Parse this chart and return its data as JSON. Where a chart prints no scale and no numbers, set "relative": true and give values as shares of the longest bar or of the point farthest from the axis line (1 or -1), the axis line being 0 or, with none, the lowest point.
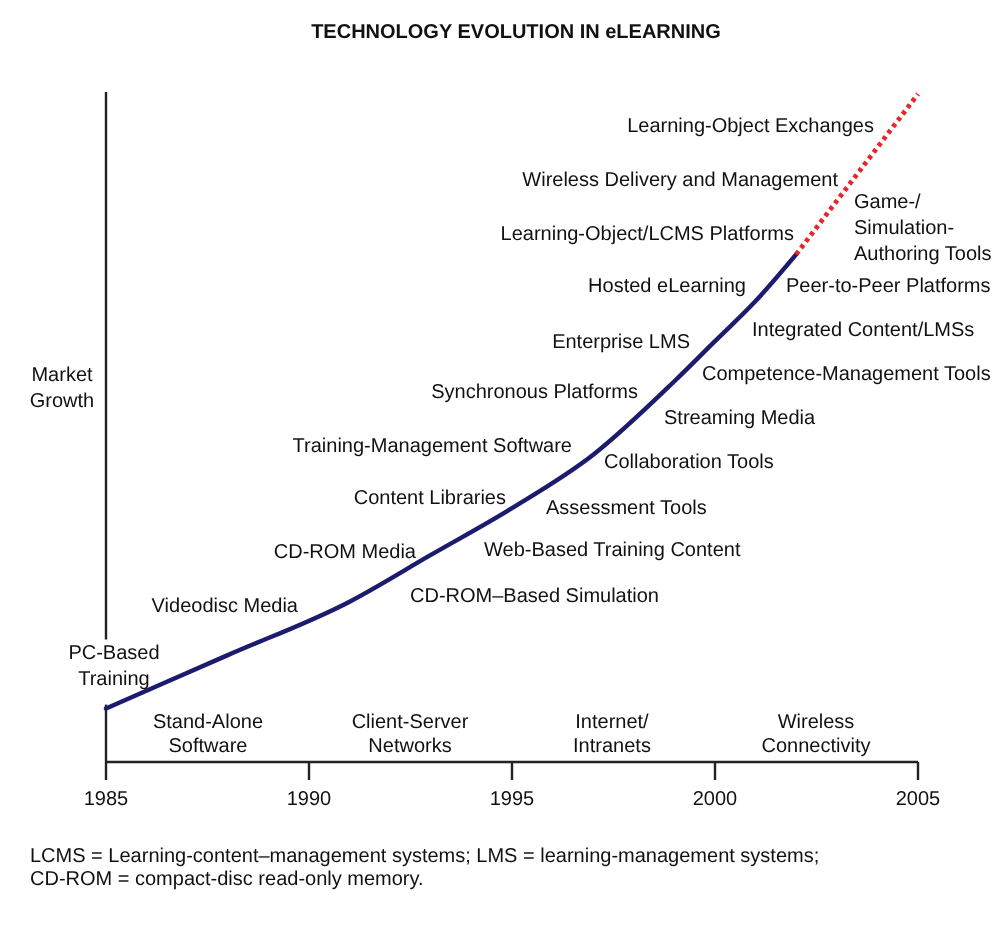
{
  "chart_data": {
    "type": "line",
    "title": "TECHNOLOGY EVOLUTION IN eLEARNING",
    "ylabel": "Market\nGrowth",
    "relative": true,
    "xlim": [
      1985,
      2005
    ],
    "xticks": [
      1985,
      1990,
      1995,
      2000,
      2005
    ],
    "series": [
      {
        "color": "#1c1c6e",
        "line_style": "solid",
        "x": [
          1985,
          1988,
          1991,
          1993,
          1995,
          1997,
          1999,
          2000,
          2001,
          2002
        ],
        "values": [
          0.08,
          0.16,
          0.24,
          0.31,
          0.38,
          0.46,
          0.57,
          0.63,
          0.69,
          0.76
        ]
      },
      {
        "color": "#e8262a",
        "line_style": "dotted",
        "x": [
          2002,
          2003,
          2004,
          2005
        ],
        "values": [
          0.76,
          0.84,
          0.92,
          1
        ]
      }
    ],
    "annotations": [
      "Learning-Object Exchanges",
      "Wireless Delivery and Management",
      "Game-/\nSimulation-\nAuthoring Tools",
      "Learning-Object/LCMS Platforms",
      "Hosted eLearning",
      "Peer-to-Peer Platforms",
      "Enterprise LMS",
      "Integrated Content/LMSs",
      "Competence-Management Tools",
      "Synchronous Platforms",
      "Streaming Media",
      "Training-Management Software",
      "Collaboration Tools",
      "Content Libraries",
      "Assessment Tools",
      "CD-ROM Media",
      "Web-Based Training Content",
      "Videodisc Media",
      "CD-ROM–Based Simulation",
      "PC-Based\nTraining",
      "Stand-Alone\nSoftware",
      "Client-Server\nNetworks",
      "Internet/\nIntranets",
      "Wireless\nConnectivity",
      "LCMS = Learning-content–management systems; LMS = learning-management systems;\nCD-ROM = compact-disc read-only memory."
    ]
  }
}
